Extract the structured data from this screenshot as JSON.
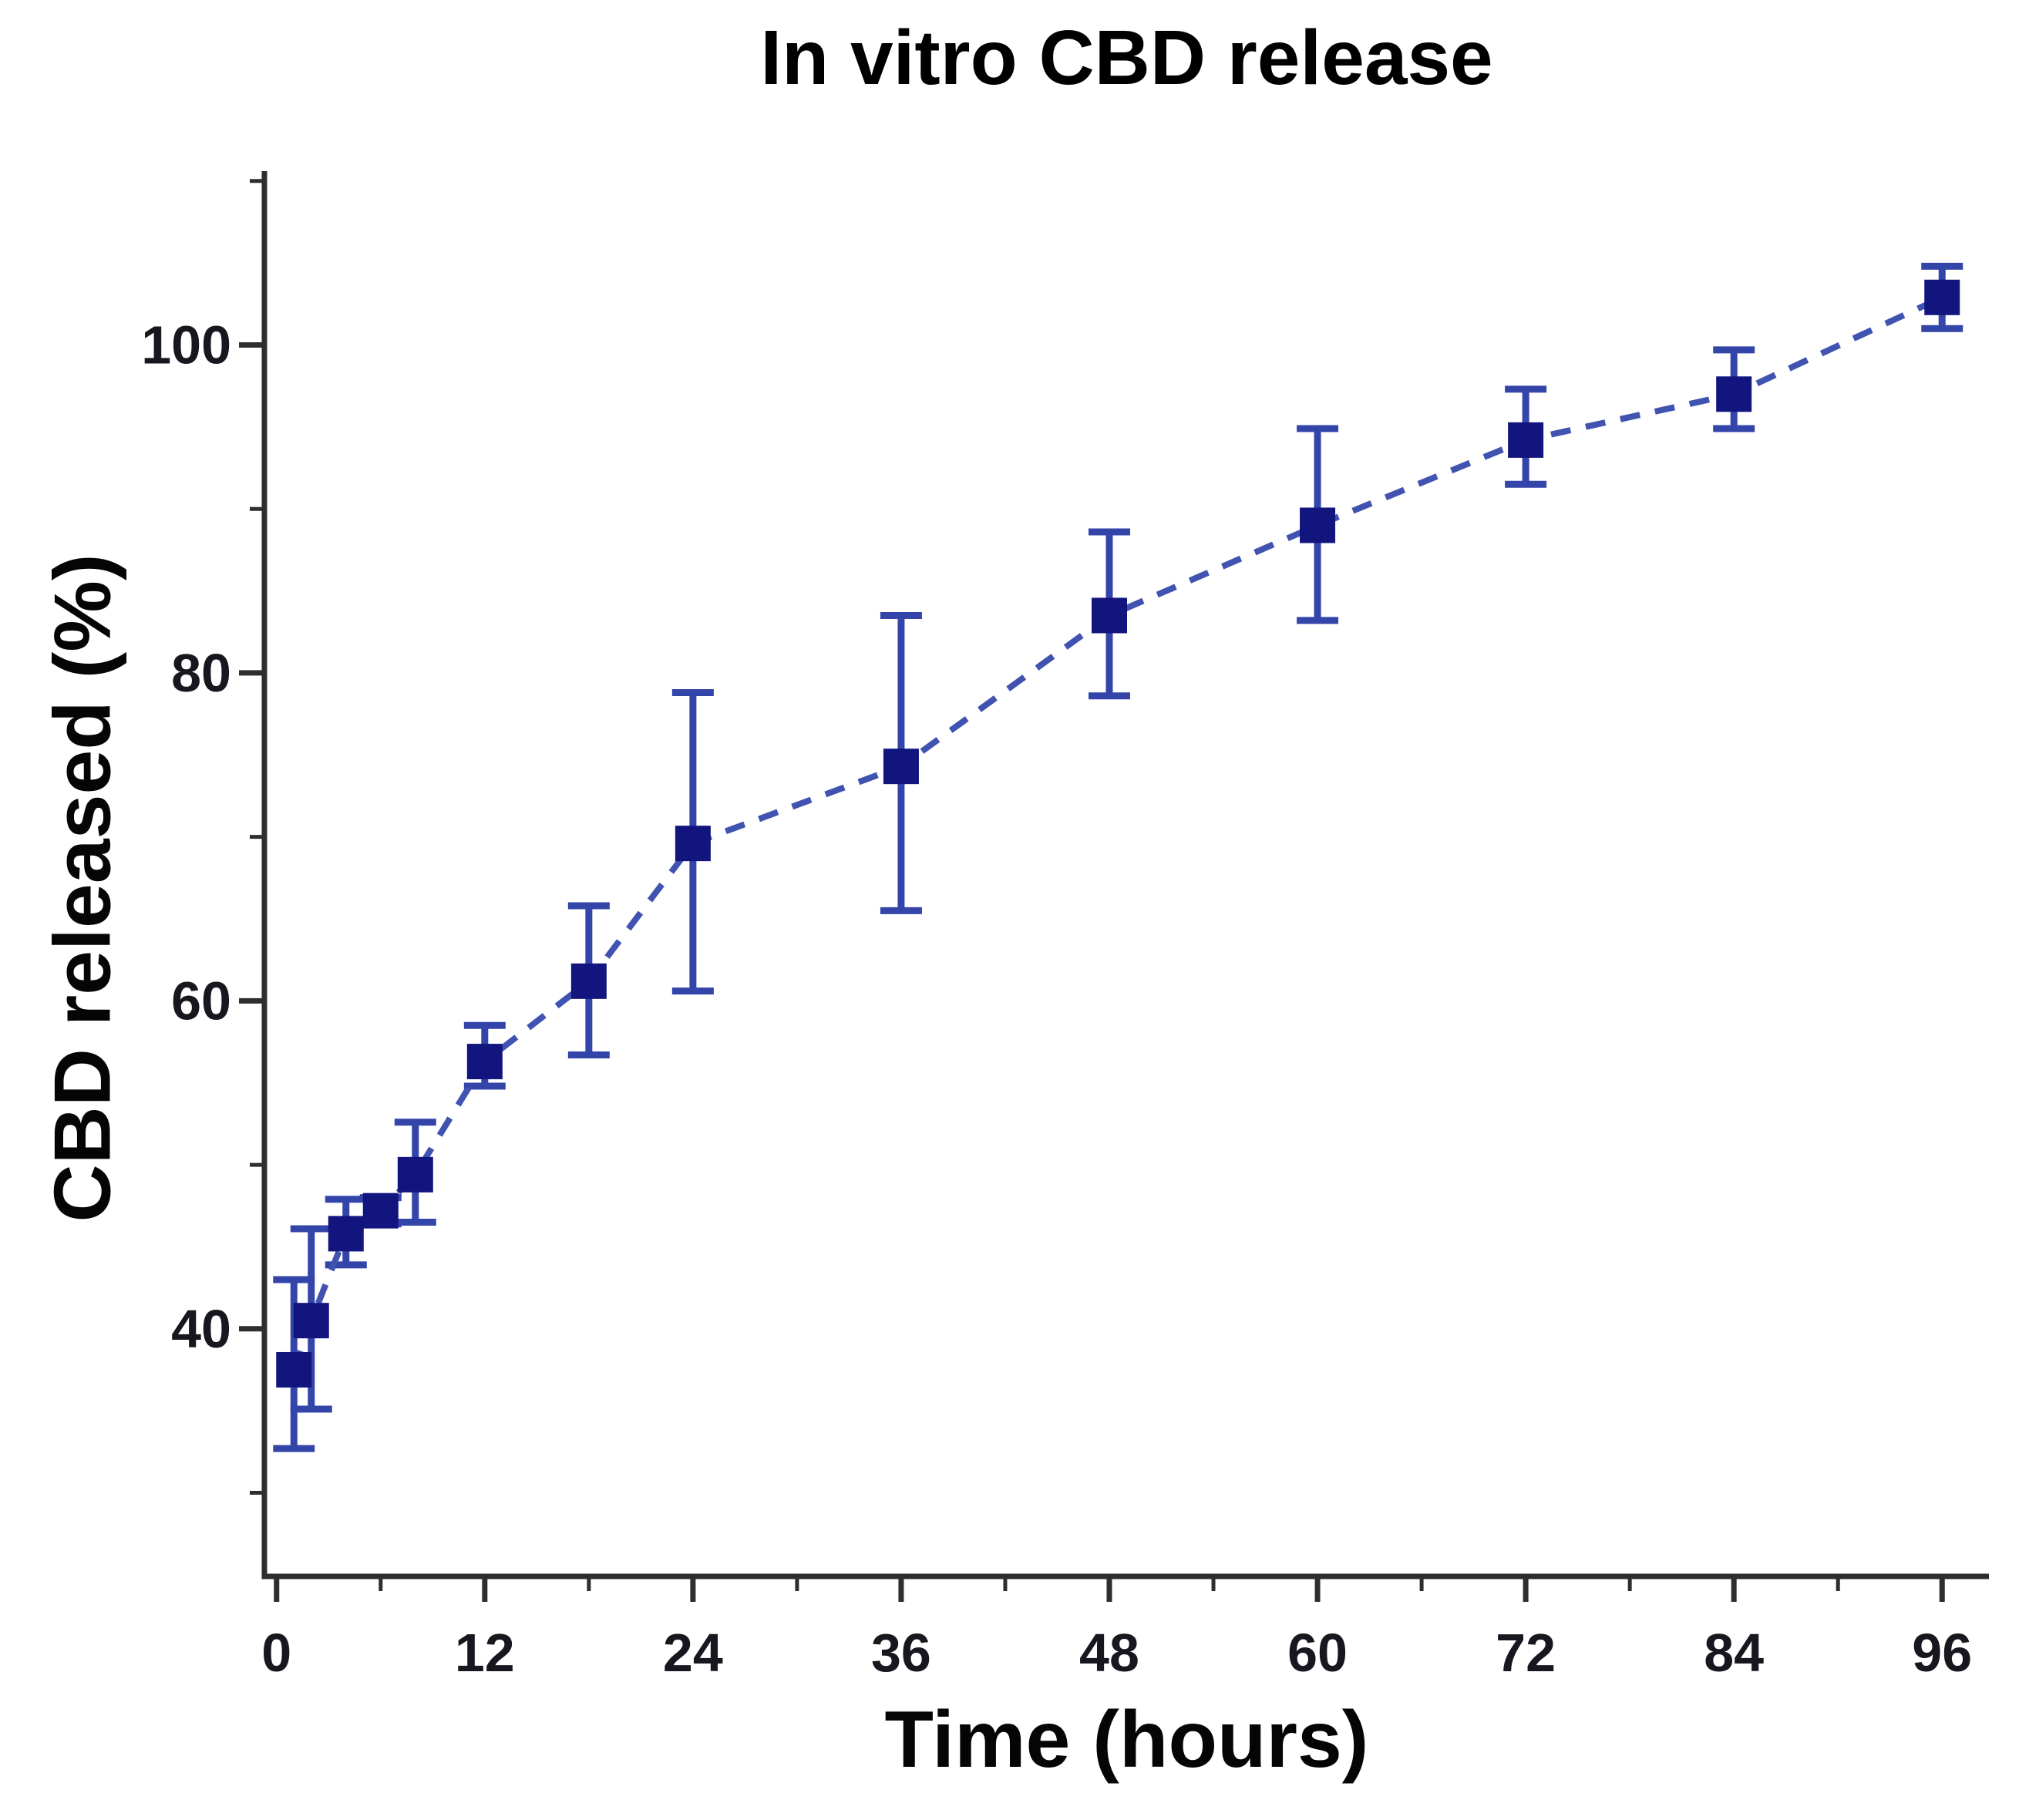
{
  "figure": {
    "title": "In vitro CBD release",
    "x_axis_label": "Time (hours)",
    "y_axis_label": "CBD released (%)"
  },
  "chart_data": {
    "type": "scatter",
    "title": "In vitro CBD release",
    "xlabel": "Time (hours)",
    "ylabel": "CBD released (%)",
    "legend": "none",
    "grid": false,
    "xlim": [
      -0.7,
      98.7
    ],
    "ylim": [
      24.9,
      110.6
    ],
    "x_major_ticks": [
      0,
      12,
      24,
      36,
      48,
      60,
      72,
      84,
      96
    ],
    "x_minor_ticks": [
      6,
      18,
      30,
      42,
      54,
      66,
      78,
      90
    ],
    "y_major_ticks": [
      40,
      60,
      80,
      100
    ],
    "y_minor_ticks": [
      30,
      50,
      70,
      90,
      110
    ],
    "series": [
      {
        "name": "CBD released (%)",
        "marker": "square",
        "line_style": "dashed",
        "x": [
          1,
          2,
          4,
          6,
          8,
          12,
          18,
          24,
          36,
          48,
          60,
          72,
          84,
          96
        ],
        "y": [
          37.5,
          40.5,
          45.8,
          47.2,
          49.4,
          56.3,
          61.2,
          69.6,
          74.3,
          83.5,
          89.0,
          94.2,
          97.0,
          102.9
        ],
        "err_low": [
          4.8,
          5.4,
          1.9,
          0.8,
          2.9,
          1.5,
          4.5,
          9.0,
          8.8,
          4.9,
          5.8,
          2.7,
          2.1,
          1.9
        ],
        "err_high": [
          5.5,
          5.6,
          2.1,
          0.8,
          3.2,
          2.2,
          4.6,
          9.2,
          9.2,
          5.1,
          5.9,
          3.1,
          2.7,
          1.9
        ]
      }
    ],
    "colors": {
      "marker": "#12157d",
      "error_bar": "#3445aa",
      "line": "#4153b0",
      "axis": "#2e2e2e",
      "tick_label": "#17171f",
      "title": "#000000"
    }
  }
}
